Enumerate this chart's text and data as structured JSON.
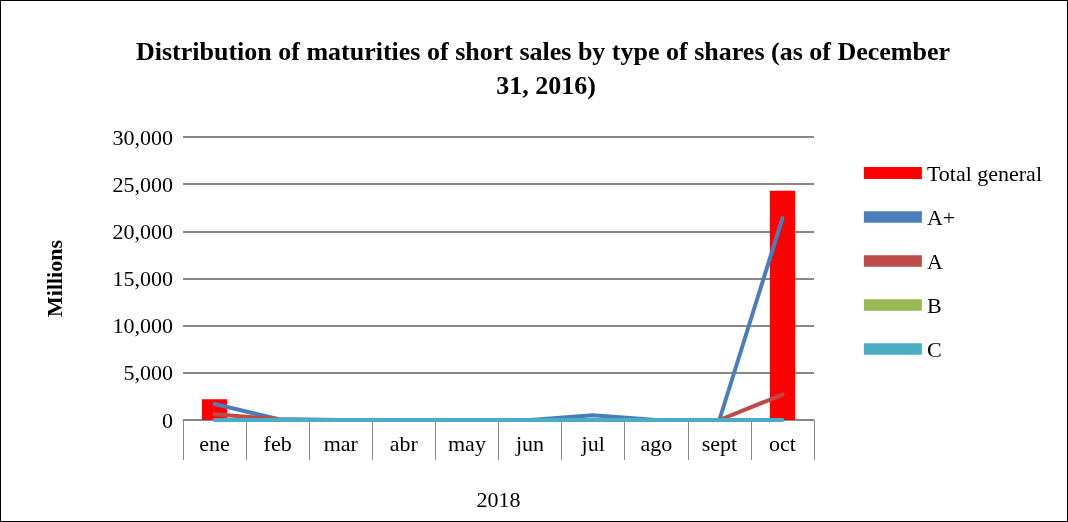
{
  "chart_data": {
    "type": "bar",
    "title": "Distribution of maturities of short sales by type of shares (as of December 31, 2016)",
    "ylabel": "Millions",
    "xlabel": "2018",
    "categories": [
      "ene",
      "feb",
      "mar",
      "abr",
      "may",
      "jun",
      "jul",
      "ago",
      "sept",
      "oct"
    ],
    "series": [
      {
        "name": "Total general",
        "color": "#ff0000",
        "values": [
          2200,
          null,
          null,
          null,
          null,
          null,
          null,
          null,
          null,
          24300
        ]
      },
      {
        "name": "A+",
        "type": "line",
        "color": "#4a7ebb",
        "values": [
          1700,
          100,
          0,
          0,
          0,
          0,
          500,
          0,
          0,
          21400
        ]
      },
      {
        "name": "A",
        "type": "line",
        "color": "#be4b48",
        "values": [
          600,
          100,
          null,
          null,
          null,
          null,
          null,
          null,
          0,
          2700
        ]
      },
      {
        "name": "B",
        "type": "line",
        "color": "#98b954",
        "values": [
          null,
          null,
          null,
          null,
          null,
          null,
          null,
          null,
          null,
          null
        ]
      },
      {
        "name": "C",
        "type": "line",
        "color": "#4bacc6",
        "values": [
          0,
          0,
          0,
          0,
          0,
          0,
          0,
          0,
          0,
          0
        ]
      }
    ],
    "ylim": [
      0,
      30000
    ],
    "yticks": [
      0,
      {
        "value": 5000,
        "label": "5,000"
      },
      {
        "value": 10000,
        "label": "10,000"
      },
      {
        "value": 15000,
        "label": "15,000"
      },
      {
        "value": 20000,
        "label": "20,000"
      },
      {
        "value": 25000,
        "label": "25,000"
      },
      {
        "value": 30000,
        "label": "30,000"
      }
    ],
    "grid": "y",
    "legend": "right",
    "marker": "none",
    "line_style": "solid"
  }
}
